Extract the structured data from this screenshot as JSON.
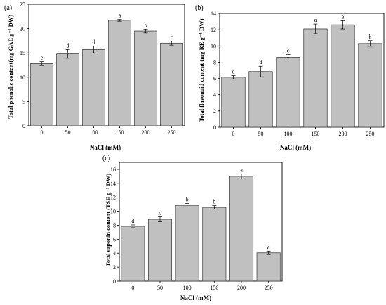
{
  "figure": {
    "panels": [
      {
        "label": "(a)"
      },
      {
        "label": "(b)"
      },
      {
        "label": "(c)"
      }
    ]
  },
  "chart_data": [
    {
      "type": "bar",
      "panel": "(a)",
      "categories": [
        "0",
        "50",
        "100",
        "150",
        "200",
        "250"
      ],
      "values": [
        12.8,
        14.8,
        15.7,
        21.7,
        19.5,
        17.0
      ],
      "errors": [
        0.4,
        0.9,
        0.7,
        0.2,
        0.4,
        0.4
      ],
      "letters": [
        "e",
        "d",
        "d",
        "a",
        "b",
        "c"
      ],
      "xlabel": "NaCl (mM)",
      "ylabel": "Total phenolic content(mg GAE g⁻¹ DW)",
      "ylim": [
        0,
        25
      ],
      "yticks": [
        0,
        5,
        10,
        15,
        20,
        25
      ],
      "bar_color": "#c0c0c0",
      "grid": false
    },
    {
      "type": "bar",
      "panel": "(b)",
      "categories": [
        "0",
        "50",
        "100",
        "150",
        "200",
        "250"
      ],
      "values": [
        6.15,
        6.85,
        8.6,
        12.1,
        12.6,
        10.3
      ],
      "errors": [
        0.2,
        0.65,
        0.35,
        0.6,
        0.5,
        0.35
      ],
      "letters": [
        "d",
        "d",
        "c",
        "a",
        "a",
        "b"
      ],
      "xlabel": "NaCl (mM)",
      "ylabel": "Total flavonoid content (mg RE g⁻¹ DW)",
      "ylim": [
        0,
        14
      ],
      "yticks": [
        0,
        2,
        4,
        6,
        8,
        10,
        12,
        14
      ],
      "bar_color": "#c0c0c0",
      "grid": false
    },
    {
      "type": "bar",
      "panel": "(c)",
      "categories": [
        "0",
        "50",
        "100",
        "150",
        "200",
        "250"
      ],
      "values": [
        7.85,
        8.85,
        10.85,
        10.55,
        15.0,
        4.05
      ],
      "errors": [
        0.2,
        0.35,
        0.25,
        0.25,
        0.35,
        0.25
      ],
      "letters": [
        "d",
        "c",
        "b",
        "b",
        "a",
        "e"
      ],
      "xlabel": "NaCl (mM)",
      "ylabel": "Total saponin content (TSE g⁻¹ DW)",
      "ylim": [
        0,
        17
      ],
      "yticks": [
        0,
        2,
        4,
        6,
        8,
        10,
        12,
        14,
        16
      ],
      "bar_color": "#c0c0c0",
      "grid": false
    }
  ]
}
